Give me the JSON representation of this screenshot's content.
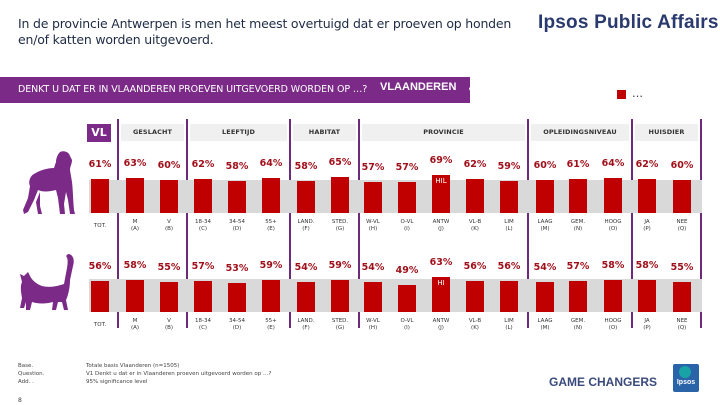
{
  "header": {
    "title": "In de provincie Antwerpen is men het meest overtuigd dat er proeven op honden en/of katten worden uitgevoerd.",
    "brand": "Ipsos Public Affairs"
  },
  "question_bar": {
    "question": "DENKT U DAT ER IN VLAANDEREN PROEVEN UITGEVOERD WORDEN OP …?",
    "region": "VLAANDEREN"
  },
  "legend": {
    "label": "…",
    "color": "#c00000"
  },
  "colors": {
    "accent_purple": "#7b2a87",
    "bar_red": "#c00000",
    "band_grey": "#d9d9d9",
    "value_text": "#a0101a"
  },
  "total_label": "VL",
  "chart_data": {
    "type": "bar",
    "title": "Denkt u dat er in Vlaanderen proeven uitgevoerd worden op …?",
    "ylabel": "%",
    "ylim": [
      0,
      100
    ],
    "groups": [
      {
        "name": "",
        "columns": [
          "TOT."
        ]
      },
      {
        "name": "GESLACHT",
        "columns": [
          "M",
          "V"
        ]
      },
      {
        "name": "LEEFTIJD",
        "columns": [
          "18-34",
          "34-54",
          "55+"
        ]
      },
      {
        "name": "HABITAT",
        "columns": [
          "LAND.",
          "STED."
        ]
      },
      {
        "name": "PROVINCIE",
        "columns": [
          "W-VL",
          "O-VL",
          "ANTW",
          "VL-B",
          "LIM"
        ]
      },
      {
        "name": "OPLEIDINGSNIVEAU",
        "columns": [
          "LAAG",
          "GEM.",
          "HOOG"
        ]
      },
      {
        "name": "HUISDIER",
        "columns": [
          "JA",
          "NEE"
        ]
      }
    ],
    "categories": [
      "TOT.",
      "M",
      "V",
      "18-34",
      "34-54",
      "55+",
      "LAND.",
      "STED.",
      "W-VL",
      "O-VL",
      "ANTW",
      "VL-B",
      "LIM",
      "LAAG",
      "GEM.",
      "HOOG",
      "JA",
      "NEE"
    ],
    "category_codes": [
      "",
      "(A)",
      "(B)",
      "(C)",
      "(D)",
      "(E)",
      "(F)",
      "(G)",
      "(H)",
      "(I)",
      "(J)",
      "(K)",
      "(L)",
      "(M)",
      "(N)",
      "(O)",
      "(P)",
      "(Q)"
    ],
    "series": [
      {
        "name": "Honden",
        "icon": "dog-icon",
        "values": [
          61,
          63,
          60,
          62,
          58,
          64,
          58,
          65,
          57,
          57,
          69,
          62,
          59,
          60,
          61,
          64,
          62,
          60
        ],
        "labels": [
          "61%",
          "63%",
          "60%",
          "62%",
          "58%",
          "64%",
          "58%",
          "65%",
          "57%",
          "57%",
          "69%",
          "62%",
          "59%",
          "60%",
          "61%",
          "64%",
          "62%",
          "60%"
        ],
        "significance": [
          "",
          "",
          "",
          "",
          "",
          "",
          "",
          "",
          "",
          "",
          "HIL",
          "",
          "",
          "",
          "",
          "",
          "",
          ""
        ]
      },
      {
        "name": "Katten",
        "icon": "cat-icon",
        "values": [
          56,
          58,
          55,
          57,
          53,
          59,
          54,
          59,
          54,
          49,
          63,
          56,
          56,
          54,
          57,
          58,
          58,
          55
        ],
        "labels": [
          "56%",
          "58%",
          "55%",
          "57%",
          "53%",
          "59%",
          "54%",
          "59%",
          "54%",
          "49%",
          "63%",
          "56%",
          "56%",
          "54%",
          "57%",
          "58%",
          "58%",
          "55%"
        ],
        "significance": [
          "",
          "",
          "",
          "",
          "",
          "",
          "",
          "",
          "",
          "",
          "HI",
          "",
          "",
          "",
          "",
          "",
          "",
          ""
        ]
      }
    ]
  },
  "footer": {
    "notes": [
      {
        "key": "Base.",
        "value": "Totale basis Vlaanderen (n=1505)"
      },
      {
        "key": "Question.",
        "value": "V1 Denkt u dat er in Vlaanderen proeven uitgevoerd worden op …?"
      },
      {
        "key": "Add. .",
        "value": "95% significance level"
      }
    ],
    "page_number": "8",
    "tagline": "GAME CHANGERS",
    "logo_text": "Ipsos"
  }
}
